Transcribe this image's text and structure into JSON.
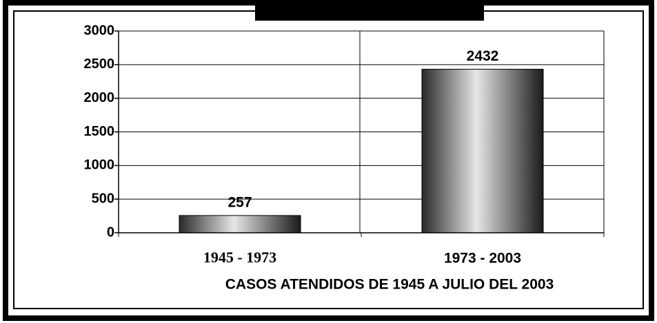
{
  "chart_data": {
    "type": "bar",
    "x_label": "CASOS ATENDIDOS DE 1945 A JULIO DEL 2003",
    "categories": [
      "1945 - 1973",
      "1973 - 2003"
    ],
    "values": [
      257,
      2432
    ],
    "ylim": [
      0,
      3000
    ],
    "yticks": [
      0,
      500,
      1000,
      1500,
      2000,
      2500,
      3000
    ],
    "grid": true
  }
}
